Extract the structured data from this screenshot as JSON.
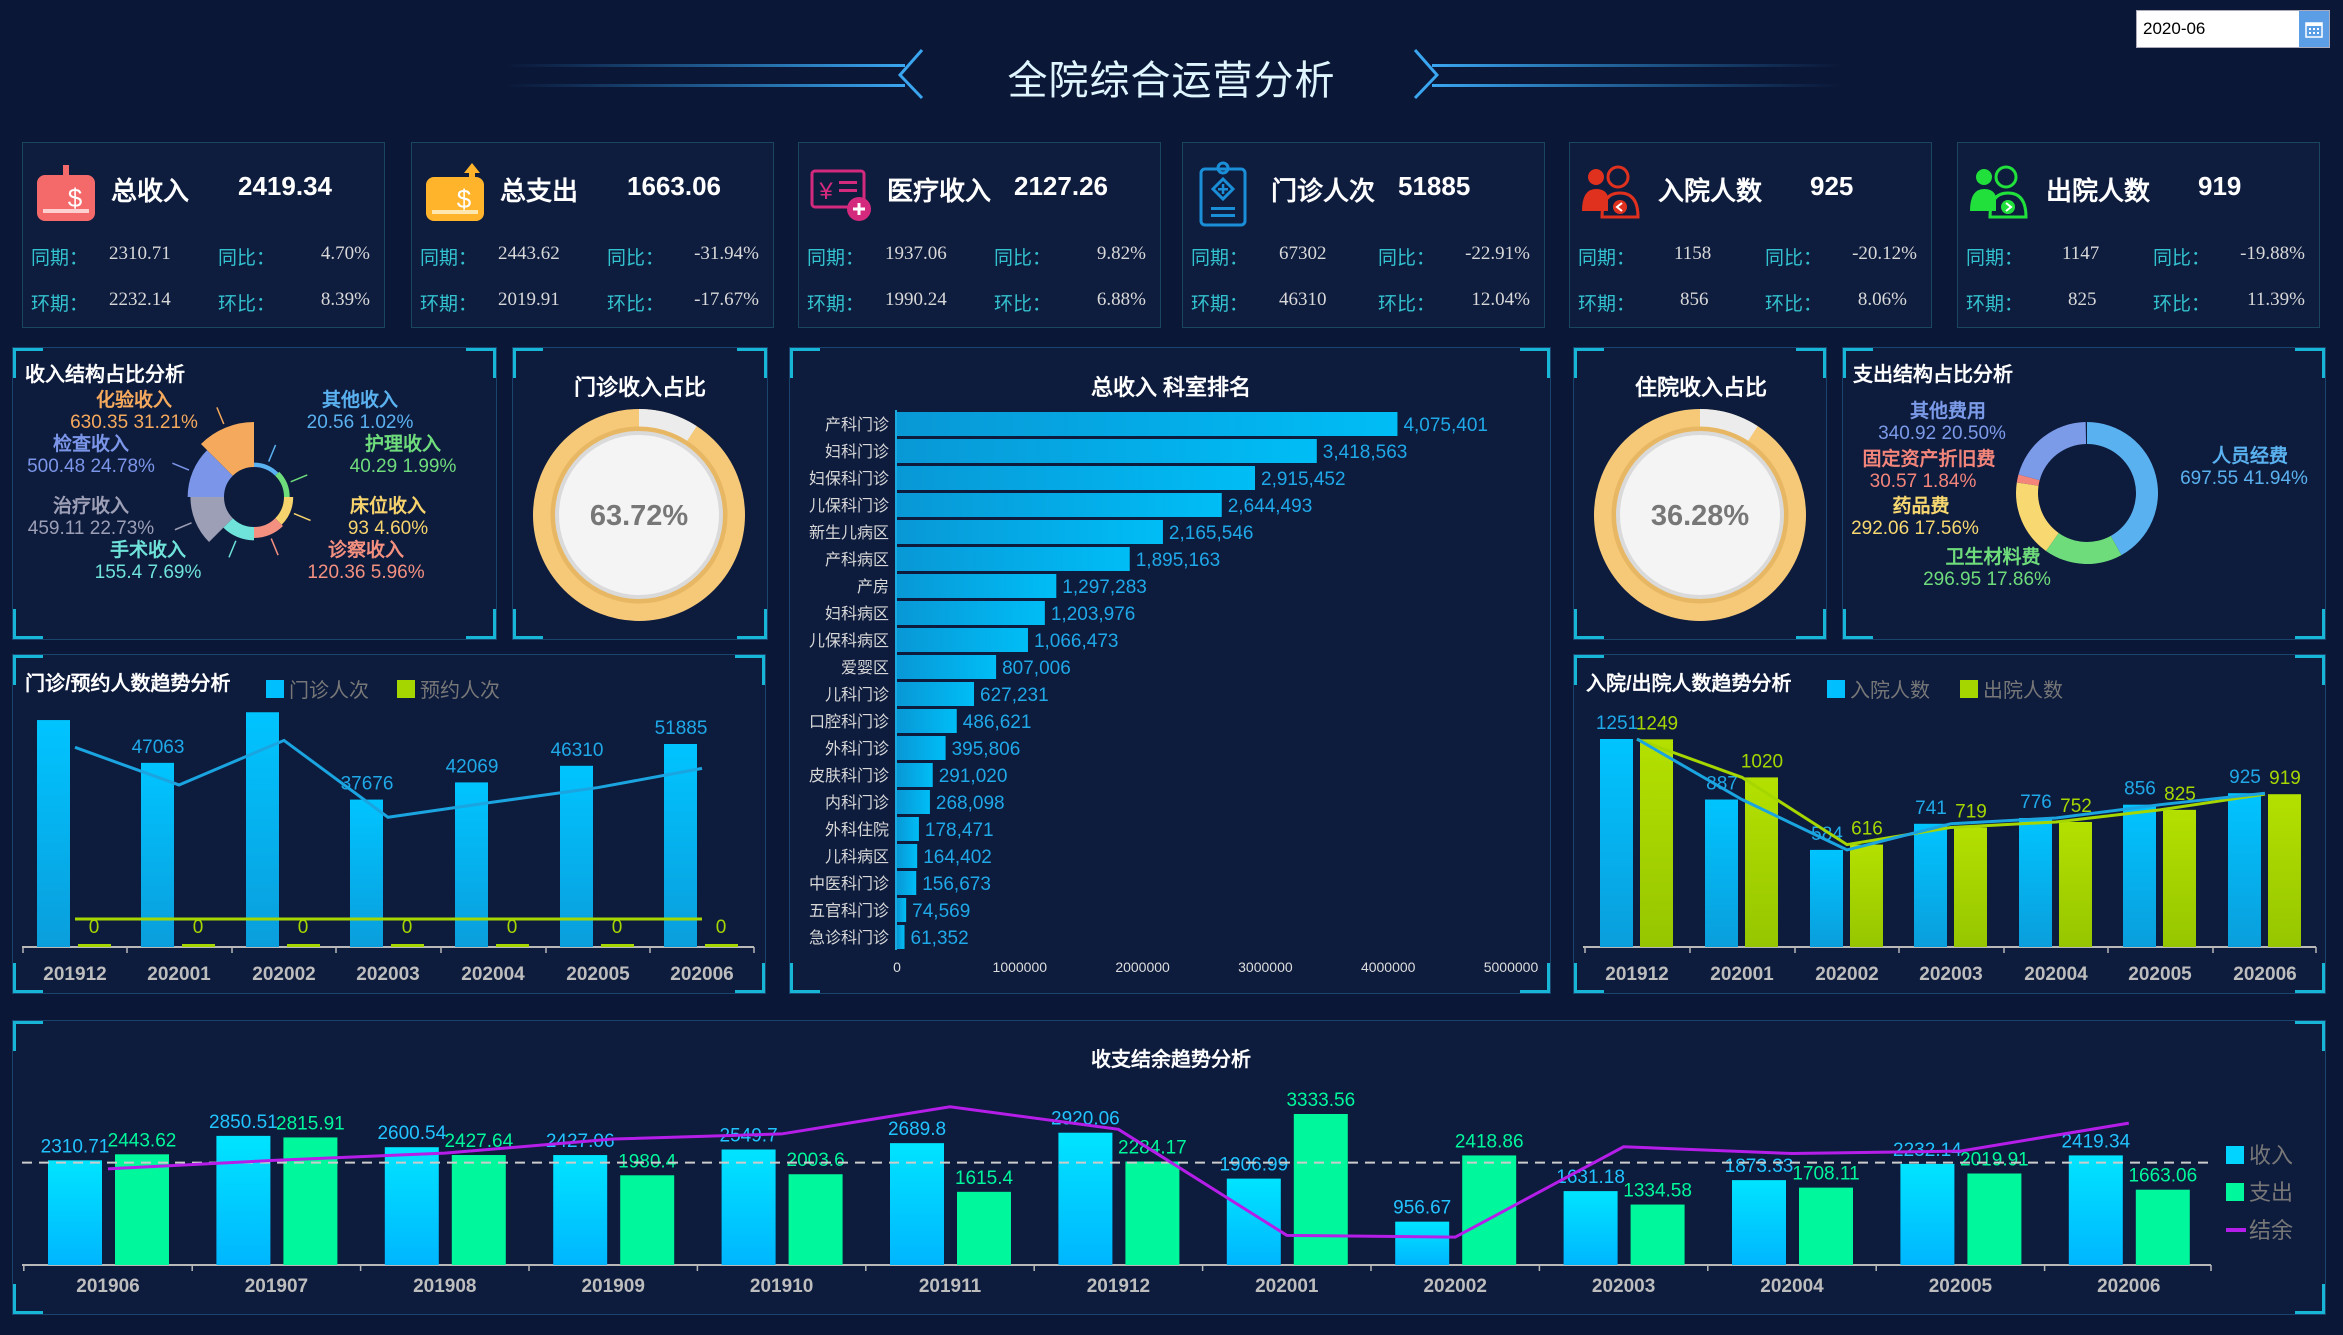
{
  "header": {
    "title": "全院综合运营分析",
    "date_value": "2020-06"
  },
  "kpi_labels": {
    "same": "同期：",
    "yoy": "同比：",
    "prev": "环期：",
    "mom": "环比："
  },
  "kpis": [
    {
      "title": "总收入",
      "value": "2419.34",
      "same": "2310.71",
      "yoy": "4.70%",
      "prev": "2232.14",
      "mom": "8.39%",
      "icon": "wallet-dollar-icon",
      "color": "#f46a6a"
    },
    {
      "title": "总支出",
      "value": "1663.06",
      "same": "2443.62",
      "yoy": "-31.94%",
      "prev": "2019.91",
      "mom": "-17.67%",
      "icon": "wallet-dollar-icon",
      "color": "#ffb42c"
    },
    {
      "title": "医疗收入",
      "value": "2127.26",
      "same": "1937.06",
      "yoy": "9.82%",
      "prev": "1990.24",
      "mom": "6.88%",
      "icon": "yuan-bill-icon",
      "color": "#d42a7d"
    },
    {
      "title": "门诊人次",
      "value": "51885",
      "same": "67302",
      "yoy": "-22.91%",
      "prev": "46310",
      "mom": "12.04%",
      "icon": "medical-clipboard-icon",
      "color": "#1a8fd8"
    },
    {
      "title": "入院人数",
      "value": "925",
      "same": "1158",
      "yoy": "-20.12%",
      "prev": "856",
      "mom": "8.06%",
      "icon": "people-in-icon",
      "color": "#e0311e"
    },
    {
      "title": "出院人数",
      "value": "919",
      "same": "1147",
      "yoy": "-19.88%",
      "prev": "825",
      "mom": "11.39%",
      "icon": "people-out-icon",
      "color": "#22e03c"
    }
  ],
  "chart_data": [
    {
      "type": "pie",
      "title": "收入结构占比分析",
      "rose": true,
      "slices": [
        {
          "name": "其他收入",
          "value": "20.56",
          "percent": "1.02%",
          "color": "#5ab1ef"
        },
        {
          "name": "护理收入",
          "value": "40.29",
          "percent": "1.99%",
          "color": "#6fdc7c"
        },
        {
          "name": "床位收入",
          "value": "93",
          "percent": "4.60%",
          "color": "#f6d36c"
        },
        {
          "name": "诊察收入",
          "value": "120.36",
          "percent": "5.96%",
          "color": "#f3907f"
        },
        {
          "name": "手术收入",
          "value": "155.4",
          "percent": "7.69%",
          "color": "#6fe3d9"
        },
        {
          "name": "治疗收入",
          "value": "459.11",
          "percent": "22.73%",
          "color": "#9c9fb5"
        },
        {
          "name": "检查收入",
          "value": "500.48",
          "percent": "24.78%",
          "color": "#7b95e8"
        },
        {
          "name": "化验收入",
          "value": "630.35",
          "percent": "31.21%",
          "color": "#f5a95c"
        }
      ]
    },
    {
      "type": "pie",
      "title": "门诊收入占比",
      "value": 63.72,
      "label": "63.72%",
      "color": "#f6c978"
    },
    {
      "type": "bar",
      "title": "总收入 科室排名",
      "orientation": "horizontal",
      "categories": [
        "产科门诊",
        "妇科门诊",
        "妇保科门诊",
        "儿保科门诊",
        "新生儿病区",
        "产科病区",
        "产房",
        "妇科病区",
        "儿保科病区",
        "爱婴区",
        "儿科门诊",
        "口腔科门诊",
        "外科门诊",
        "皮肤科门诊",
        "内科门诊",
        "外科住院",
        "儿科病区",
        "中医科门诊",
        "五官科门诊",
        "急诊科门诊"
      ],
      "values": [
        4075401,
        3418563,
        2915452,
        2644493,
        2165546,
        1895163,
        1297283,
        1203976,
        1066473,
        807006,
        627231,
        486621,
        395806,
        291020,
        268098,
        178471,
        164402,
        156673,
        74569,
        61352
      ],
      "xlim": [
        0,
        5000000
      ],
      "xticks": [
        "0",
        "1000000",
        "2000000",
        "3000000",
        "4000000",
        "5000000"
      ]
    },
    {
      "type": "pie",
      "title": "支出结构占比分析",
      "slices": [
        {
          "name": "人员经费",
          "value": "697.55",
          "percent": "41.94%",
          "color": "#5ab1ef"
        },
        {
          "name": "卫生材料费",
          "value": "296.95",
          "percent": "17.86%",
          "color": "#6fdc7c"
        },
        {
          "name": "药品费",
          "value": "292.06",
          "percent": "17.56%",
          "color": "#f8d870"
        },
        {
          "name": "固定资产折旧费",
          "value": "30.57",
          "percent": "1.84%",
          "color": "#f3857a"
        },
        {
          "name": "其他费用",
          "value": "340.92",
          "percent": "20.50%",
          "color": "#7b9ae8"
        }
      ]
    },
    {
      "type": "pie",
      "title": "住院收入占比",
      "value": 36.28,
      "label": "36.28%",
      "color": "#f6c978"
    },
    {
      "type": "bar",
      "title": "门诊/预约人数趋势分析",
      "categories": [
        "201912",
        "202001",
        "202002",
        "202003",
        "202004",
        "202005",
        "202006"
      ],
      "series": [
        {
          "name": "门诊人次",
          "values": [
            58000,
            47063,
            60000,
            37676,
            42069,
            46310,
            51885
          ],
          "hidden_labels": [
            0,
            2
          ],
          "color": "#00bfff"
        },
        {
          "name": "预约人次",
          "values": [
            0,
            0,
            0,
            0,
            0,
            0,
            0
          ],
          "color": "#a6d600"
        }
      ]
    },
    {
      "type": "bar",
      "title": "入院/出院人数趋势分析",
      "categories": [
        "201912",
        "202001",
        "202002",
        "202003",
        "202004",
        "202005",
        "202006"
      ],
      "series": [
        {
          "name": "入院人数",
          "values": [
            1251,
            887,
            584,
            741,
            776,
            856,
            925
          ],
          "color": "#00bfff"
        },
        {
          "name": "出院人数",
          "values": [
            1249,
            1020,
            616,
            719,
            752,
            825,
            919
          ],
          "color": "#a6d600"
        }
      ]
    },
    {
      "type": "bar",
      "title": "收支结余趋势分析",
      "categories": [
        "201906",
        "201907",
        "201908",
        "201909",
        "201910",
        "201911",
        "201912",
        "202001",
        "202002",
        "202003",
        "202004",
        "202005",
        "202006"
      ],
      "series": [
        {
          "name": "收入",
          "values": [
            2310.71,
            2850.51,
            2600.54,
            2427.06,
            2549.7,
            2689.8,
            2920.06,
            1906.99,
            956.67,
            1631.18,
            1873.33,
            2232.14,
            2419.34
          ],
          "color": "#00d4ff"
        },
        {
          "name": "支出",
          "values": [
            2443.62,
            2815.91,
            2427.64,
            1980.4,
            2003.6,
            1615.4,
            2284.17,
            3333.56,
            2418.86,
            1334.58,
            1708.11,
            2019.91,
            1663.06
          ],
          "color": "#00f79c"
        },
        {
          "name": "结余",
          "type": "line",
          "values": [
            -132.91,
            34.6,
            172.9,
            446.66,
            546.1,
            1074.4,
            635.89,
            -1426.57,
            -1462.19,
            296.6,
            165.22,
            212.23,
            756.28
          ],
          "color": "#b51ee8"
        }
      ]
    }
  ]
}
